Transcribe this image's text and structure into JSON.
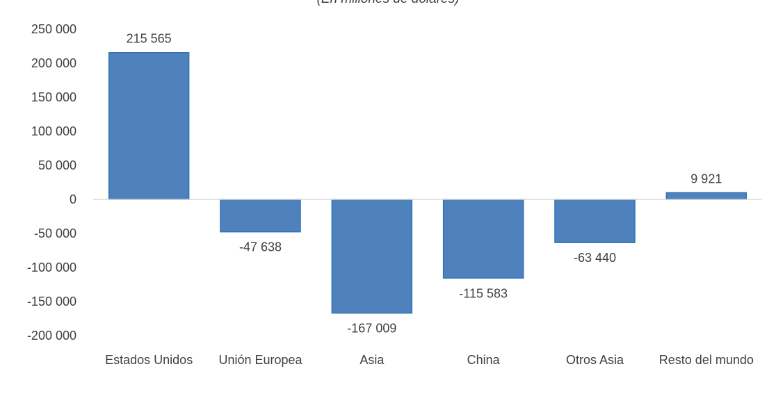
{
  "chart_data": {
    "type": "bar",
    "subtitle": "(En millones de dólares)",
    "categories": [
      "Estados Unidos",
      "Unión Europea",
      "Asia",
      "China",
      "Otros Asia",
      "Resto del mundo"
    ],
    "values": [
      215565,
      -47638,
      -167009,
      -115583,
      -63440,
      9921
    ],
    "data_labels": [
      "215 565",
      "-47 638",
      "-167 009",
      "-115 583",
      "-63 440",
      "9 921"
    ],
    "ylim": [
      -200000,
      250000
    ],
    "y_ticks": [
      250000,
      200000,
      150000,
      100000,
      50000,
      0,
      -50000,
      -100000,
      -150000,
      -200000
    ],
    "y_tick_labels": [
      "250 000",
      "200 000",
      "150 000",
      "100 000",
      "50 000",
      "0",
      "-50 000",
      "-100 000",
      "-150 000",
      "-200 000"
    ],
    "xlabel": "",
    "ylabel": "",
    "grid": false,
    "bar_color": "#4f81bd",
    "bar_edge_color": "#2e75b6"
  }
}
